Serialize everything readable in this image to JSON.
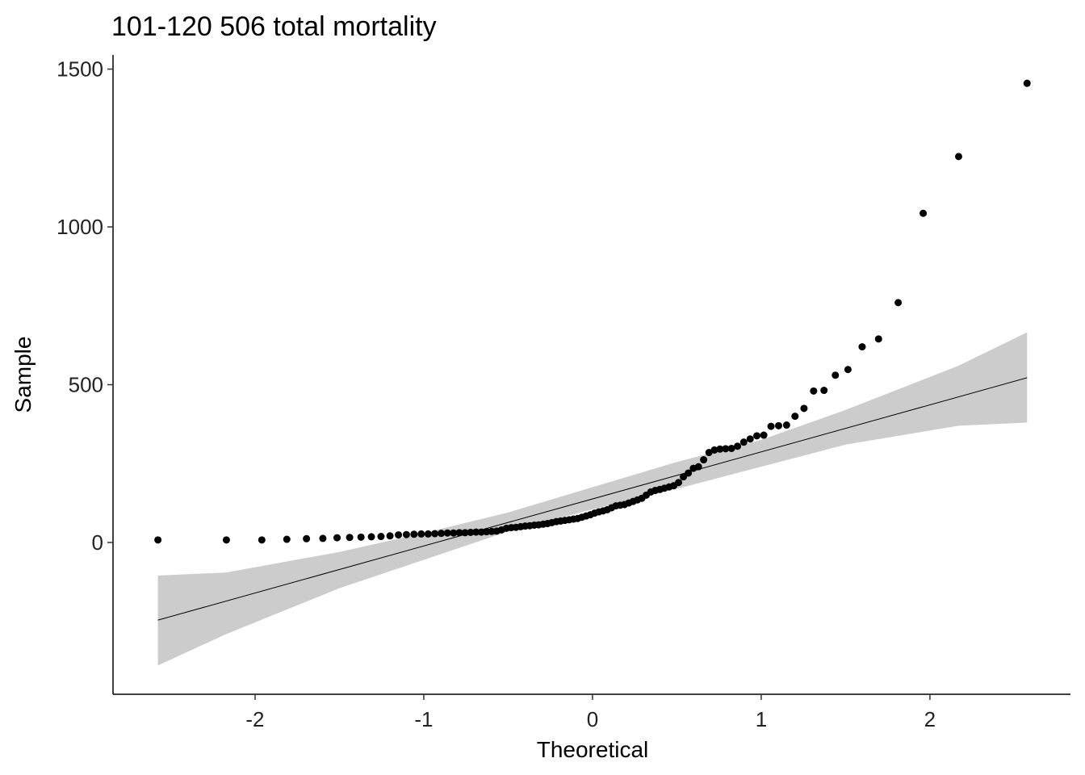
{
  "chart_data": {
    "type": "qq",
    "title": "101-120 506 total mortality",
    "x_label": "Theoretical",
    "y_label": "Sample",
    "color": "#000000",
    "band_color": "#cccccc",
    "x": [
      -2.5758,
      -2.1701,
      -1.96,
      -1.8119,
      -1.6954,
      -1.5982,
      -1.5141,
      -1.4395,
      -1.3722,
      -1.3106,
      -1.2536,
      -1.2004,
      -1.1503,
      -1.1031,
      -1.0581,
      -1.0152,
      -0.9741,
      -0.9346,
      -0.8965,
      -0.8596,
      -0.8239,
      -0.7892,
      -0.7554,
      -0.7225,
      -0.6903,
      -0.6588,
      -0.628,
      -0.5978,
      -0.5681,
      -0.5388,
      -0.5101,
      -0.4817,
      -0.4538,
      -0.4261,
      -0.3989,
      -0.3719,
      -0.3451,
      -0.3186,
      -0.2924,
      -0.2663,
      -0.2404,
      -0.2147,
      -0.1891,
      -0.1637,
      -0.1383,
      -0.113,
      -0.0878,
      -0.0627,
      -0.0376,
      -0.0125,
      0.0125,
      0.0376,
      0.0627,
      0.0878,
      0.113,
      0.1383,
      0.1637,
      0.1891,
      0.2147,
      0.2404,
      0.2663,
      0.2924,
      0.3186,
      0.3451,
      0.3719,
      0.3989,
      0.4261,
      0.4538,
      0.4817,
      0.5101,
      0.5388,
      0.5681,
      0.5978,
      0.628,
      0.6588,
      0.6903,
      0.7225,
      0.7554,
      0.7892,
      0.8239,
      0.8596,
      0.8965,
      0.9346,
      0.9741,
      1.0152,
      1.0581,
      1.1031,
      1.1503,
      1.2004,
      1.2536,
      1.3106,
      1.3722,
      1.4395,
      1.5141,
      1.5982,
      1.6954,
      1.8119,
      1.96,
      2.1701,
      2.5758
    ],
    "values": [
      8,
      8,
      8,
      10,
      12,
      13,
      15,
      16,
      17,
      18,
      19,
      21,
      24,
      25,
      26,
      27,
      27,
      28,
      29,
      30,
      30,
      31,
      31,
      32,
      33,
      33,
      34,
      35,
      36,
      40,
      45,
      47,
      48,
      50,
      52,
      53,
      55,
      56,
      58,
      60,
      63,
      66,
      68,
      70,
      72,
      74,
      76,
      80,
      84,
      88,
      93,
      97,
      100,
      104,
      110,
      116,
      118,
      120,
      125,
      130,
      135,
      140,
      150,
      160,
      165,
      168,
      172,
      176,
      180,
      190,
      208,
      220,
      235,
      240,
      262,
      285,
      293,
      296,
      297,
      298,
      305,
      318,
      328,
      338,
      340,
      368,
      370,
      372,
      400,
      425,
      480,
      482,
      530,
      548,
      620,
      645,
      760,
      1043,
      1223,
      1455
    ],
    "reference_line": {
      "x": [
        -2.576,
        2.576
      ],
      "y": [
        -246,
        522
      ]
    },
    "band": {
      "x": [
        -2.576,
        -2.17,
        -1.5,
        -1,
        -0.5,
        0,
        0.5,
        1,
        1.5,
        2.17,
        2.576
      ],
      "upper": [
        -105,
        -95,
        -30,
        30,
        95,
        175,
        255,
        325,
        420,
        560,
        666
      ],
      "lower": [
        -390,
        -290,
        -145,
        -55,
        35,
        105,
        170,
        240,
        310,
        370,
        380
      ]
    },
    "xlim": [
      -2.842,
      2.833
    ],
    "ylim": [
      -481,
      1545
    ],
    "xticks": [
      -2,
      -1,
      0,
      1,
      2
    ],
    "yticks": [
      0,
      500,
      1000,
      1500
    ]
  }
}
